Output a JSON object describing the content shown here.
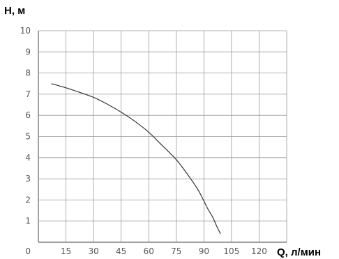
{
  "chart_data": {
    "type": "line",
    "xlabel": "Q, л/мин",
    "ylabel": "H, м",
    "xlim": [
      0,
      135
    ],
    "ylim": [
      0,
      10
    ],
    "x_ticks": [
      "0",
      "15",
      "30",
      "45",
      "60",
      "75",
      "90",
      "105",
      "120"
    ],
    "y_ticks": [
      "1",
      "2",
      "3",
      "4",
      "5",
      "6",
      "7",
      "8",
      "9",
      "10"
    ],
    "grid": true,
    "series": [
      {
        "x": [
          7,
          15,
          22,
          30,
          37,
          45,
          52,
          60,
          67,
          75,
          82,
          87,
          90,
          92,
          95,
          97,
          99
        ],
        "y": [
          7.5,
          7.3,
          7.1,
          6.85,
          6.55,
          6.15,
          5.75,
          5.2,
          4.6,
          3.9,
          3.1,
          2.45,
          1.95,
          1.6,
          1.15,
          0.75,
          0.4
        ]
      }
    ],
    "line_color": "#333333",
    "grid_color": "#999999"
  }
}
